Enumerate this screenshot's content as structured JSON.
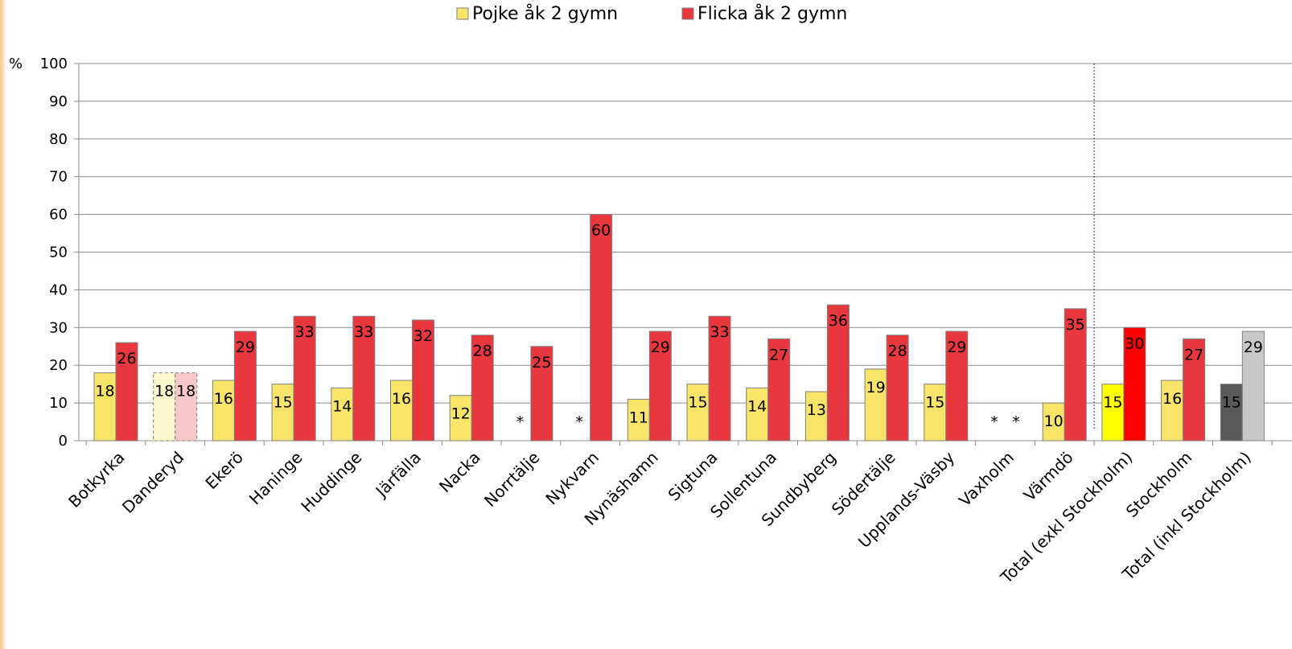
{
  "chart_data": {
    "type": "bar",
    "title": "",
    "xlabel": "",
    "ylabel": "%",
    "ylim": [
      0,
      100
    ],
    "yticks": [
      0,
      10,
      20,
      30,
      40,
      50,
      60,
      70,
      80,
      90,
      100
    ],
    "grid": true,
    "legend_position": "top-center",
    "categories": [
      "Botkyrka",
      "Danderyd",
      "Ekerö",
      "Haninge",
      "Huddinge",
      "Järfälla",
      "Nacka",
      "Norrtälje",
      "Nykvarn",
      "Nynäshamn",
      "Sigtuna",
      "Sollentuna",
      "Sundbyberg",
      "Södertälje",
      "Upplands-Väsby",
      "Vaxholm",
      "Värmdö",
      "Total (exkl Stockholm)",
      "Stockholm",
      "Total (inkl Stockholm)"
    ],
    "series": [
      {
        "name": "Pojke åk 2 gymn",
        "color": "#f7e469",
        "values": [
          18,
          18,
          16,
          15,
          14,
          16,
          12,
          null,
          null,
          11,
          15,
          14,
          13,
          19,
          15,
          null,
          10,
          15,
          16,
          15
        ],
        "missing_label": "*"
      },
      {
        "name": "Flicka åk 2 gymn",
        "color": "#e8383d",
        "values": [
          26,
          18,
          29,
          33,
          33,
          32,
          28,
          25,
          60,
          29,
          33,
          27,
          36,
          28,
          29,
          null,
          35,
          30,
          27,
          29
        ],
        "missing_label": "*"
      }
    ],
    "special_colors": {
      "Danderyd": {
        "Pojke åk 2 gymn": "#fdf8cc",
        "Flicka åk 2 gymn": "#f8c8c8",
        "style": "dashed"
      },
      "Total (exkl Stockholm)": {
        "Pojke åk 2 gymn": "#ffff00",
        "Flicka åk 2 gymn": "#ff0000"
      },
      "Total (inkl Stockholm)": {
        "Pojke åk 2 gymn": "#595959",
        "Flicka åk 2 gymn": "#c8c8c8"
      }
    },
    "separator_after": "Värmdö"
  }
}
